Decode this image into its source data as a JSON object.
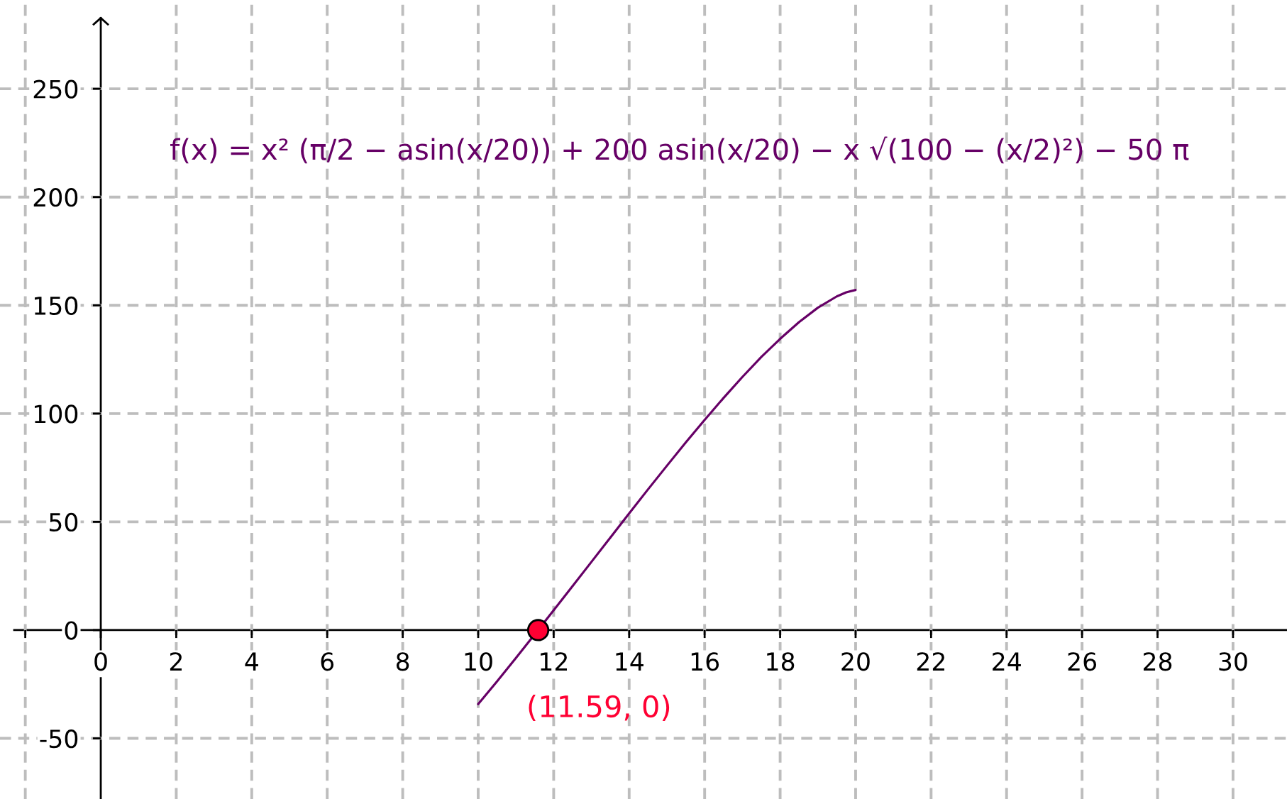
{
  "chart_data": {
    "type": "line",
    "annotations": [
      "f(x) = x² (π/2 − asin(x/20)) + 200 asin(x/20) − x √(100 − (x/2)²) − 50 π",
      {
        "text": "(11.59, 0)",
        "x": 11.59,
        "y": 0
      }
    ],
    "series": [
      {
        "color": "#660066",
        "x": [
          10,
          10.5,
          11,
          11.5,
          12,
          12.5,
          13,
          13.5,
          14,
          14.5,
          15,
          15.5,
          16,
          16.5,
          17,
          17.5,
          18,
          18.5,
          19,
          19.5,
          19.75,
          20
        ],
        "values": [
          -34.2,
          -23.7,
          -12.9,
          -1.9,
          9.2,
          20.3,
          31.5,
          42.7,
          53.9,
          65.0,
          75.9,
          86.7,
          97.1,
          107.2,
          116.9,
          126.1,
          134.5,
          142.2,
          148.9,
          154.1,
          156.0,
          157.1
        ]
      },
      {
        "type": "scatter",
        "color": "#ff0033",
        "marker": "circle",
        "x": [
          11.59
        ],
        "values": [
          0
        ]
      }
    ],
    "xlim": [
      -2.67,
      31.43
    ],
    "ylim": [
      -78,
      291
    ],
    "xticks": [
      {
        "value": -2,
        "label": null
      },
      0,
      2,
      4,
      6,
      8,
      10,
      12,
      14,
      16,
      18,
      20,
      22,
      24,
      26,
      28,
      30
    ],
    "yticks": [
      -50,
      0,
      50,
      100,
      150,
      200,
      250
    ],
    "grid": true
  }
}
